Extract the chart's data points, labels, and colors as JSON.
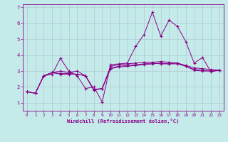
{
  "title": "",
  "xlabel": "Windchill (Refroidissement éolien,°C)",
  "ylabel": "",
  "xlim": [
    -0.5,
    23.5
  ],
  "ylim": [
    0.5,
    7.2
  ],
  "yticks": [
    1,
    2,
    3,
    4,
    5,
    6,
    7
  ],
  "xticks": [
    0,
    1,
    2,
    3,
    4,
    5,
    6,
    7,
    8,
    9,
    10,
    11,
    12,
    13,
    14,
    15,
    16,
    17,
    18,
    19,
    20,
    21,
    22,
    23
  ],
  "background_color": "#c5eaea",
  "grid_color": "#b0c8d0",
  "line_color": "#880088",
  "series": [
    [
      1.7,
      1.6,
      2.7,
      2.8,
      3.8,
      3.0,
      2.7,
      1.9,
      2.0,
      1.05,
      3.4,
      3.45,
      3.5,
      4.55,
      5.3,
      6.7,
      5.2,
      6.2,
      5.8,
      4.85,
      3.5,
      3.85,
      2.95,
      3.05
    ],
    [
      1.7,
      1.6,
      2.7,
      2.9,
      3.0,
      2.9,
      3.0,
      2.7,
      1.85,
      1.9,
      3.3,
      3.4,
      3.45,
      3.5,
      3.55,
      3.55,
      3.6,
      3.55,
      3.5,
      3.35,
      3.2,
      3.15,
      3.1,
      3.05
    ],
    [
      1.7,
      1.6,
      2.7,
      2.9,
      2.85,
      2.85,
      2.8,
      2.7,
      1.8,
      1.9,
      3.2,
      3.3,
      3.35,
      3.4,
      3.45,
      3.5,
      3.45,
      3.45,
      3.5,
      3.3,
      3.1,
      3.05,
      3.0,
      3.05
    ],
    [
      1.7,
      1.6,
      2.7,
      2.9,
      2.8,
      2.8,
      2.8,
      2.7,
      1.8,
      1.9,
      3.15,
      3.25,
      3.3,
      3.35,
      3.4,
      3.45,
      3.5,
      3.45,
      3.45,
      3.3,
      3.05,
      3.0,
      3.0,
      3.05
    ]
  ]
}
